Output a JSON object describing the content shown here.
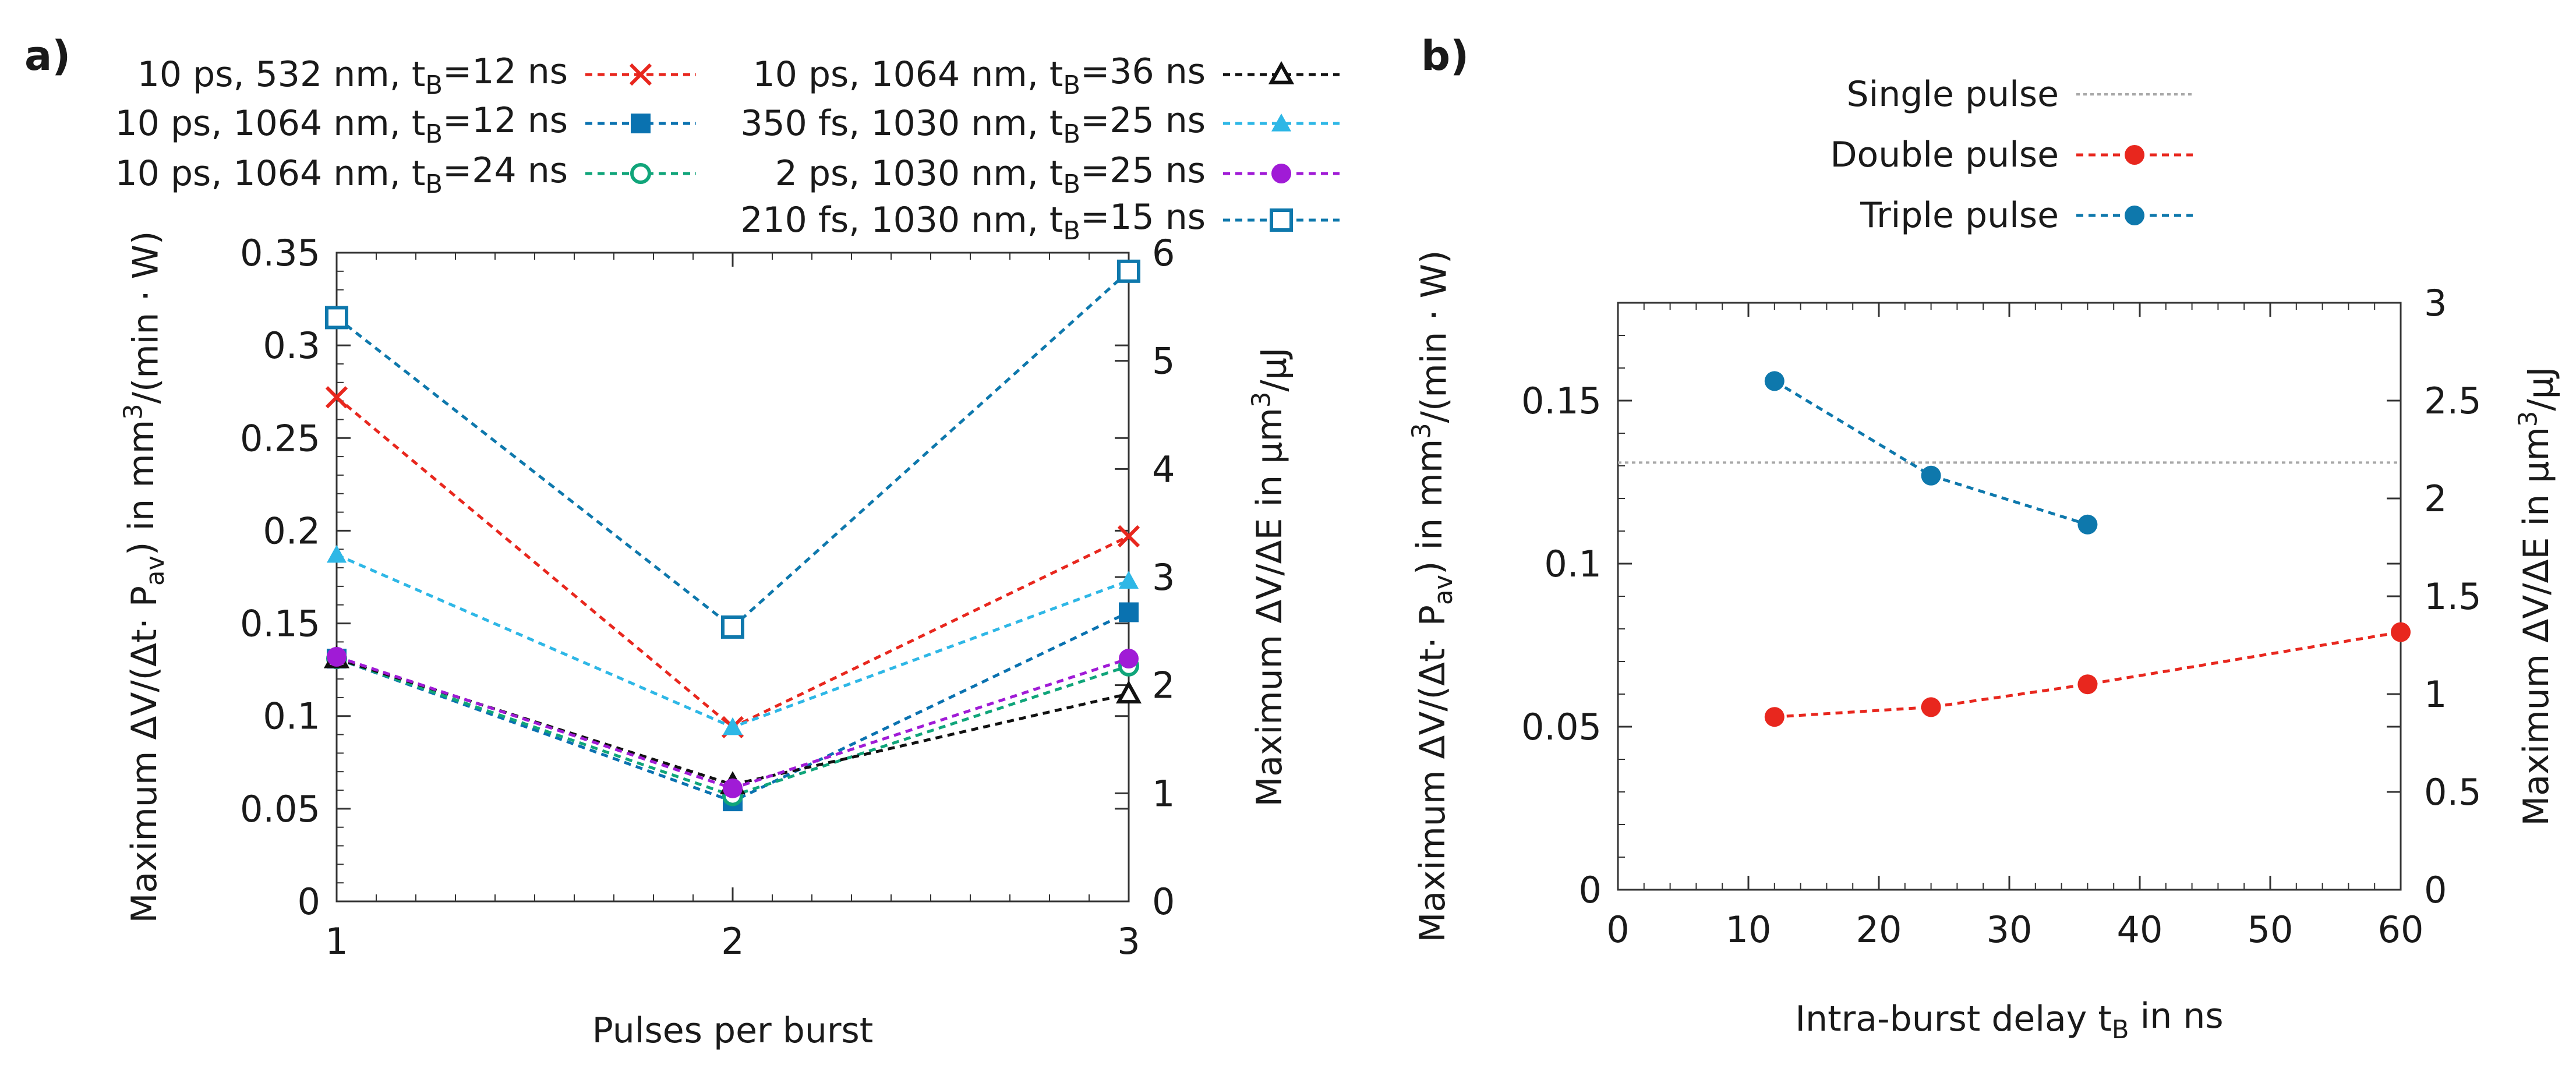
{
  "figure": {
    "panel_labels": [
      "a)",
      "b)"
    ]
  },
  "chart_data": [
    {
      "id": "a",
      "type": "line",
      "title": "",
      "x": [
        1,
        2,
        3
      ],
      "xlabel": "Pulses per burst",
      "ylabel": {
        "pre": "Maximum ΔV/(Δt· P",
        "sub": "av",
        "mid": ") in mm",
        "sup": "3",
        "post": "/(min · W)"
      },
      "y2label": {
        "pre": "Maximum  ΔV/ΔE in µm",
        "sup": "3",
        "post": "/µJ"
      },
      "xlim": [
        1,
        3
      ],
      "ylim": [
        0,
        0.35
      ],
      "y2lim": [
        0,
        6
      ],
      "xticks": [
        1,
        2,
        3
      ],
      "yticks": [
        0,
        0.05,
        0.1,
        0.15,
        0.2,
        0.25,
        0.3,
        0.35
      ],
      "ytick_labels": [
        "0",
        "0.05",
        "0.1",
        "0.15",
        "0.2",
        "0.25",
        "0.3",
        "0.35"
      ],
      "y2ticks": [
        0,
        1,
        2,
        3,
        4,
        5,
        6
      ],
      "y2tick_labels": [
        "0",
        "1",
        "2",
        "3",
        "4",
        "5",
        "6"
      ],
      "grid": false,
      "legend": [
        {
          "series": 0,
          "column": "left",
          "row": 0
        },
        {
          "series": 1,
          "column": "left",
          "row": 1
        },
        {
          "series": 2,
          "column": "left",
          "row": 2
        },
        {
          "series": 3,
          "column": "right",
          "row": 0
        },
        {
          "series": 4,
          "column": "right",
          "row": 1
        },
        {
          "series": 5,
          "column": "right",
          "row": 2
        },
        {
          "series": 6,
          "column": "right",
          "row": 3
        }
      ],
      "series": [
        {
          "name": "10 ps, 532 nm, tB=12 ns",
          "label": {
            "pre": "10 ps, 532 nm, t",
            "sub": "B",
            "post": "=12 ns"
          },
          "color": "#e8271e",
          "marker": "x",
          "values": [
            0.272,
            0.094,
            0.197
          ]
        },
        {
          "name": "10 ps, 1064 nm, tB=12 ns",
          "label": {
            "pre": "10 ps, 1064 nm, t",
            "sub": "B",
            "post": "=12 ns"
          },
          "color": "#0a72b0",
          "marker": "square",
          "values": [
            0.131,
            0.054,
            0.156
          ]
        },
        {
          "name": "10 ps, 1064 nm, tB=24 ns",
          "label": {
            "pre": "10 ps, 1064 nm, t",
            "sub": "B",
            "post": "=24 ns"
          },
          "color": "#10a57a",
          "marker": "circle-open",
          "values": [
            0.131,
            0.057,
            0.127
          ]
        },
        {
          "name": "10 ps, 1064 nm, tB=36 ns",
          "label": {
            "pre": "10 ps, 1064 nm, t",
            "sub": "B",
            "post": "=36 ns"
          },
          "color": "#111111",
          "marker": "triangle-open",
          "values": [
            0.131,
            0.063,
            0.112
          ]
        },
        {
          "name": "350 fs, 1030 nm, tB=25 ns",
          "label": {
            "pre": "350 fs, 1030 nm, t",
            "sub": "B",
            "post": "=25 ns"
          },
          "color": "#2eb7e6",
          "marker": "triangle",
          "values": [
            0.187,
            0.094,
            0.173
          ]
        },
        {
          "name": "2 ps, 1030 nm, tB=25 ns",
          "label": {
            "pre": "2 ps, 1030 nm, t",
            "sub": "B",
            "post": "=25 ns"
          },
          "color": "#a01bd6",
          "marker": "circle",
          "values": [
            0.132,
            0.061,
            0.131
          ]
        },
        {
          "name": "210 fs, 1030 nm, tB=15 ns",
          "label": {
            "pre": "210 fs, 1030 nm, t",
            "sub": "B",
            "post": "=15 ns"
          },
          "color": "#0e78ac",
          "marker": "square-open",
          "values": [
            0.315,
            0.148,
            0.34
          ]
        }
      ]
    },
    {
      "id": "b",
      "type": "line",
      "title": "",
      "xlabel": {
        "pre": "Intra-burst delay t",
        "sub": "B",
        "post": " in ns"
      },
      "ylabel": {
        "pre": "Maximum ΔV/(Δt· P",
        "sub": "av",
        "mid": ") in mm",
        "sup": "3",
        "post": "/(min · W)"
      },
      "y2label": {
        "pre": "Maximum  ΔV/ΔE in µm",
        "sup": "3",
        "post": "/µJ"
      },
      "xlim": [
        0,
        60
      ],
      "ylim": [
        0,
        0.18
      ],
      "y2lim": [
        0,
        3
      ],
      "xticks": [
        0,
        10,
        20,
        30,
        40,
        50,
        60
      ],
      "xtick_labels": [
        "0",
        "10",
        "20",
        "30",
        "40",
        "50",
        "60"
      ],
      "yticks": [
        0,
        0.05,
        0.1,
        0.15
      ],
      "ytick_labels": [
        "0",
        "0.05",
        "0.1",
        "0.15"
      ],
      "y2ticks": [
        0,
        0.5,
        1,
        1.5,
        2,
        2.5,
        3
      ],
      "y2tick_labels": [
        "0",
        "0.5",
        "1",
        "1.5",
        "2",
        "2.5",
        "3"
      ],
      "grid": false,
      "legend_position": "top",
      "series": [
        {
          "name": "Single pulse",
          "color": "#a8a8a8",
          "marker": "none",
          "style": "hline",
          "x": [
            0,
            60
          ],
          "values": [
            0.131,
            0.131
          ]
        },
        {
          "name": "Double pulse",
          "color": "#e8271e",
          "marker": "circle",
          "x": [
            12,
            24,
            36,
            60
          ],
          "values": [
            0.053,
            0.056,
            0.063,
            0.079
          ]
        },
        {
          "name": "Triple pulse",
          "color": "#0e78ac",
          "marker": "circle",
          "x": [
            12,
            24,
            36
          ],
          "values": [
            0.156,
            0.127,
            0.112
          ]
        }
      ]
    }
  ]
}
